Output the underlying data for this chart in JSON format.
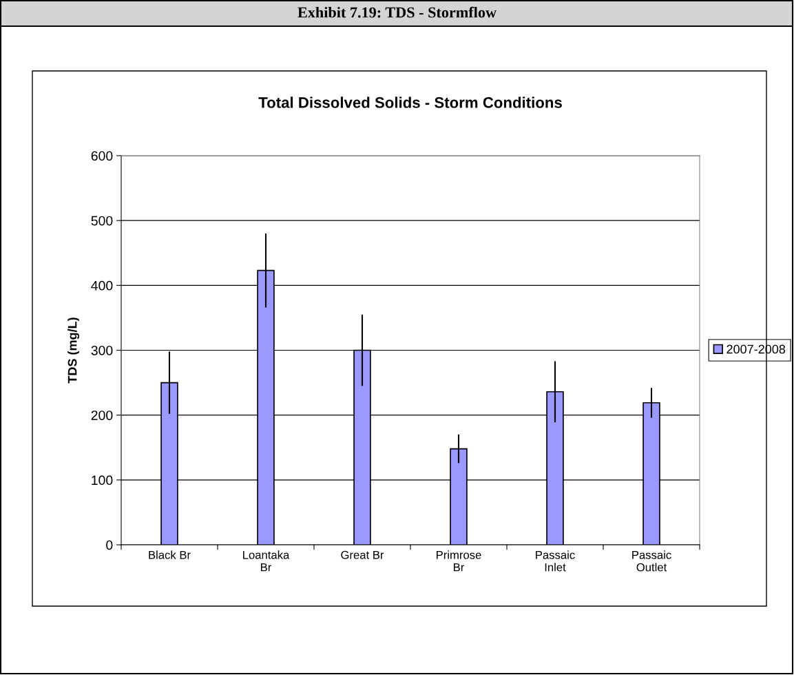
{
  "chart_data": {
    "type": "bar",
    "title": "Exhibit 7.19: TDS - Stormflow",
    "subtitle": "Total Dissolved Solids - Storm Conditions",
    "ylabel": "TDS (mg/L)",
    "categories": [
      "Black Br",
      "Loantaka\nBr",
      "Great Br",
      "Primrose\nBr",
      "Passaic\nInlet",
      "Passaic\nOutlet"
    ],
    "series": [
      {
        "name": "2007-2008",
        "color": "#9999ff",
        "values": [
          250,
          423,
          300,
          148,
          236,
          219
        ],
        "errors": [
          48,
          57,
          55,
          22,
          47,
          23
        ]
      }
    ],
    "ylim": [
      0,
      600
    ],
    "yticks": [
      0,
      100,
      200,
      300,
      400,
      500,
      600
    ],
    "grid": "y",
    "legend": "right"
  }
}
